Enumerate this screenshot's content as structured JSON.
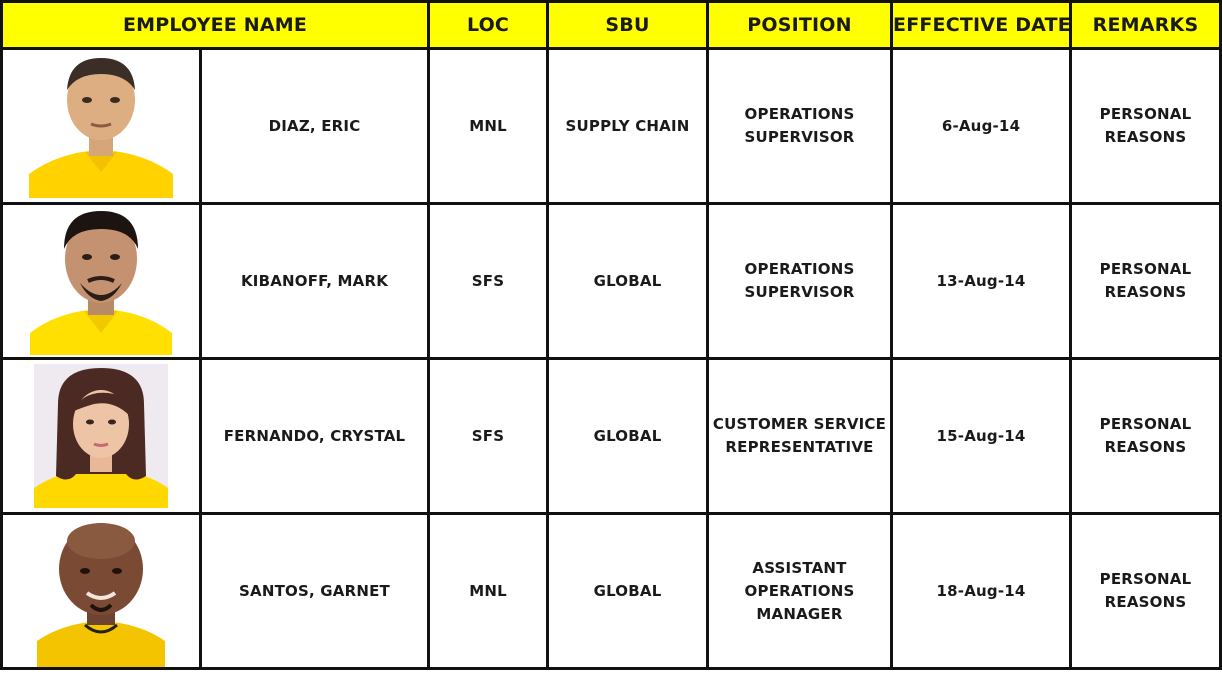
{
  "headers": {
    "employee_name": "EMPLOYEE NAME",
    "loc": "LOC",
    "sbu": "SBU",
    "position": "POSITION",
    "effective_date": "EFFECTIVE DATE",
    "remarks": "REMARKS"
  },
  "colors": {
    "header_background": "#ffff00",
    "header_text": "#e0202a",
    "grid_lines": "#111111",
    "shirt_yellow": "#ffd200"
  },
  "rows": [
    {
      "photo_icon": "employee-photo",
      "name": "DIAZ, ERIC",
      "loc": "MNL",
      "sbu": "SUPPLY CHAIN",
      "position": "OPERATIONS\nSUPERVISOR",
      "effective_date": "6-Aug-14",
      "remarks": "PERSONAL\nREASONS"
    },
    {
      "photo_icon": "employee-photo",
      "name": "KIBANOFF, MARK",
      "loc": "SFS",
      "sbu": "GLOBAL",
      "position": "OPERATIONS\nSUPERVISOR",
      "effective_date": "13-Aug-14",
      "remarks": "PERSONAL\nREASONS"
    },
    {
      "photo_icon": "employee-photo",
      "name": "FERNANDO, CRYSTAL",
      "loc": "SFS",
      "sbu": "GLOBAL",
      "position": "CUSTOMER SERVICE\nREPRESENTATIVE",
      "effective_date": "15-Aug-14",
      "remarks": "PERSONAL\nREASONS"
    },
    {
      "photo_icon": "employee-photo",
      "name": "SANTOS, GARNET",
      "loc": "MNL",
      "sbu": "GLOBAL",
      "position": "ASSISTANT\nOPERATIONS\nMANAGER",
      "effective_date": "18-Aug-14",
      "remarks": "PERSONAL\nREASONS"
    }
  ]
}
